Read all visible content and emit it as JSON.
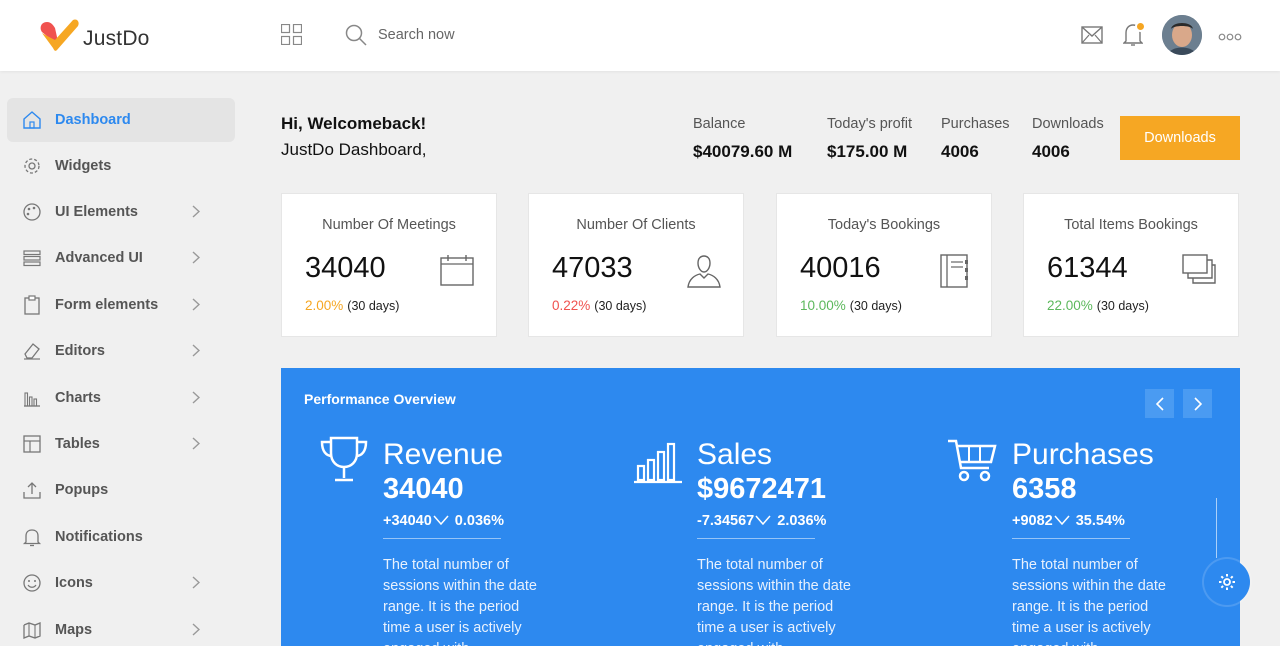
{
  "header": {
    "app_name": "JustDo",
    "search_placeholder": "Search now"
  },
  "sidebar": {
    "items": [
      {
        "label": "Dashboard",
        "icon": "home-icon",
        "active": true,
        "has_submenu": false
      },
      {
        "label": "Widgets",
        "icon": "gear-icon",
        "active": false,
        "has_submenu": false
      },
      {
        "label": "UI Elements",
        "icon": "palette-icon",
        "active": false,
        "has_submenu": true
      },
      {
        "label": "Advanced UI",
        "icon": "layers-icon",
        "active": false,
        "has_submenu": true
      },
      {
        "label": "Form elements",
        "icon": "clipboard-icon",
        "active": false,
        "has_submenu": true
      },
      {
        "label": "Editors",
        "icon": "eraser-icon",
        "active": false,
        "has_submenu": true
      },
      {
        "label": "Charts",
        "icon": "bar-chart-icon",
        "active": false,
        "has_submenu": true
      },
      {
        "label": "Tables",
        "icon": "table-icon",
        "active": false,
        "has_submenu": true
      },
      {
        "label": "Popups",
        "icon": "upload-icon",
        "active": false,
        "has_submenu": false
      },
      {
        "label": "Notifications",
        "icon": "bell-icon",
        "active": false,
        "has_submenu": false
      },
      {
        "label": "Icons",
        "icon": "smiley-icon",
        "active": false,
        "has_submenu": true
      },
      {
        "label": "Maps",
        "icon": "map-icon",
        "active": false,
        "has_submenu": true
      }
    ]
  },
  "welcome": {
    "title": "Hi, Welcomeback!",
    "subtitle": "JustDo Dashboard,"
  },
  "stats": [
    {
      "label": "Balance",
      "value": "$40079.60 M"
    },
    {
      "label": "Today's profit",
      "value": "$175.00 M"
    },
    {
      "label": "Purchases",
      "value": "4006"
    },
    {
      "label": "Downloads",
      "value": "4006"
    }
  ],
  "downloads_button": "Downloads",
  "cards": [
    {
      "title": "Number Of Meetings",
      "value": "34040",
      "percent": "2.00%",
      "period": "(30 days)",
      "color": "#f6a723",
      "icon": "calendar-icon"
    },
    {
      "title": "Number Of Clients",
      "value": "47033",
      "percent": "0.22%",
      "period": "(30 days)",
      "color": "#f0524f",
      "icon": "user-icon"
    },
    {
      "title": "Today's Bookings",
      "value": "40016",
      "percent": "10.00%",
      "period": "(30 days)",
      "color": "#5cb85c",
      "icon": "notebook-icon"
    },
    {
      "title": "Total Items Bookings",
      "value": "61344",
      "percent": "22.00%",
      "period": "(30 days)",
      "color": "#5cb85c",
      "icon": "copy-icon"
    }
  ],
  "performance": {
    "title": "Performance Overview",
    "columns": [
      {
        "name": "Revenue",
        "value": "34040",
        "change": "+34040",
        "change_pct": "0.036%",
        "icon": "trophy-icon",
        "desc": "The total number of sessions within the date range. It is the period time a user is actively engaged with"
      },
      {
        "name": "Sales",
        "value": "$9672471",
        "change": "-7.34567",
        "change_pct": "2.036%",
        "icon": "bar-chart-icon",
        "desc": "The total number of sessions within the date range. It is the period time a user is actively engaged with"
      },
      {
        "name": "Purchases",
        "value": "6358",
        "change": "+9082",
        "change_pct": "35.54%",
        "icon": "cart-icon",
        "desc": "The total number of sessions within the date range. It is the period time a user is actively engaged with"
      }
    ]
  },
  "colors": {
    "accent": "#2d89ef",
    "orange": "#f6a723"
  }
}
